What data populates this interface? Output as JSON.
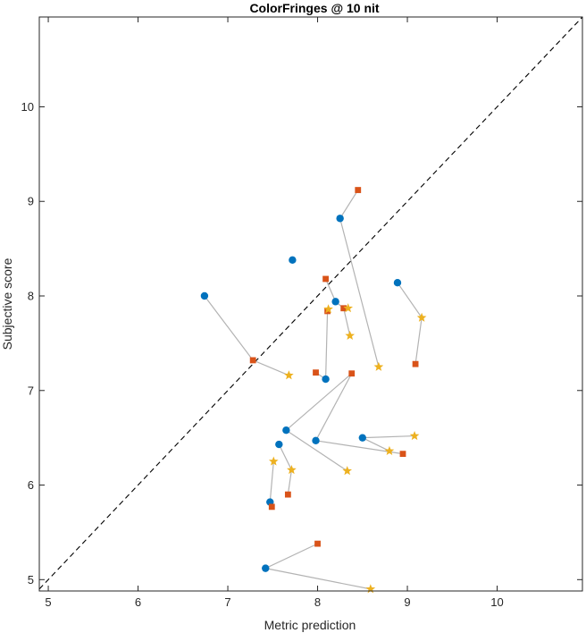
{
  "chart_data": {
    "type": "scatter",
    "title": "ColorFringes @ 10 nit",
    "xlabel": "Metric prediction",
    "ylabel": "Subjective score",
    "xlim": [
      4.9,
      10.95
    ],
    "ylim": [
      4.88,
      10.95
    ],
    "xticks": [
      5,
      6,
      7,
      8,
      9,
      10
    ],
    "yticks": [
      5,
      6,
      7,
      8,
      9,
      10
    ],
    "grid": false,
    "reference_line": "y = x (dashed)",
    "colors": {
      "circle": "#0072BD",
      "square": "#D95319",
      "star": "#EDB120",
      "connector": "#b3b3b3",
      "reference": "#000000"
    },
    "series": [
      {
        "marker": "circle",
        "points": [
          [
            6.74,
            8.0
          ],
          [
            7.72,
            8.38
          ],
          [
            8.25,
            8.82
          ],
          [
            8.2,
            7.94
          ],
          [
            8.89,
            8.14
          ],
          [
            8.09,
            7.12
          ],
          [
            7.65,
            6.58
          ],
          [
            7.98,
            6.47
          ],
          [
            8.5,
            6.5
          ],
          [
            7.57,
            6.43
          ],
          [
            7.47,
            5.82
          ],
          [
            7.42,
            5.12
          ]
        ]
      },
      {
        "marker": "square",
        "points": [
          [
            7.28,
            7.32
          ],
          [
            8.09,
            8.18
          ],
          [
            8.45,
            9.12
          ],
          [
            8.29,
            7.87
          ],
          [
            8.11,
            7.84
          ],
          [
            9.09,
            7.28
          ],
          [
            7.98,
            7.19
          ],
          [
            8.38,
            7.18
          ],
          [
            8.95,
            6.33
          ],
          [
            7.67,
            5.9
          ],
          [
            7.49,
            5.77
          ],
          [
            8.0,
            5.38
          ]
        ]
      },
      {
        "marker": "star",
        "points": [
          [
            7.68,
            7.16
          ],
          [
            8.34,
            7.87
          ],
          [
            8.12,
            7.86
          ],
          [
            8.68,
            7.25
          ],
          [
            9.16,
            7.77
          ],
          [
            8.36,
            7.58
          ],
          [
            8.33,
            6.15
          ],
          [
            9.08,
            6.52
          ],
          [
            8.8,
            6.36
          ],
          [
            7.71,
            6.16
          ],
          [
            7.51,
            6.25
          ],
          [
            8.59,
            4.9
          ]
        ]
      }
    ],
    "connections": [
      [
        [
          6.74,
          8.0
        ],
        [
          7.28,
          7.32
        ],
        [
          7.68,
          7.16
        ]
      ],
      [
        [
          7.72,
          8.38
        ]
      ],
      [
        [
          8.25,
          8.82
        ],
        [
          8.45,
          9.12
        ]
      ],
      [
        [
          8.25,
          8.82
        ],
        [
          8.68,
          7.25
        ]
      ],
      [
        [
          8.2,
          7.94
        ],
        [
          8.09,
          8.18
        ]
      ],
      [
        [
          8.2,
          7.94
        ],
        [
          8.29,
          7.87
        ],
        [
          8.36,
          7.58
        ]
      ],
      [
        [
          8.11,
          7.84
        ],
        [
          8.09,
          7.12
        ],
        [
          7.98,
          7.19
        ]
      ],
      [
        [
          8.89,
          8.14
        ],
        [
          9.16,
          7.77
        ],
        [
          9.09,
          7.28
        ]
      ],
      [
        [
          7.65,
          6.58
        ],
        [
          8.38,
          7.18
        ]
      ],
      [
        [
          7.65,
          6.58
        ],
        [
          8.33,
          6.15
        ]
      ],
      [
        [
          7.98,
          6.47
        ],
        [
          8.38,
          7.18
        ]
      ],
      [
        [
          7.98,
          6.47
        ],
        [
          8.95,
          6.33
        ]
      ],
      [
        [
          8.5,
          6.5
        ],
        [
          9.08,
          6.52
        ]
      ],
      [
        [
          8.5,
          6.5
        ],
        [
          8.8,
          6.36
        ]
      ],
      [
        [
          7.57,
          6.43
        ],
        [
          7.71,
          6.16
        ],
        [
          7.67,
          5.9
        ]
      ],
      [
        [
          7.47,
          5.82
        ],
        [
          7.51,
          6.25
        ]
      ],
      [
        [
          7.47,
          5.82
        ],
        [
          7.49,
          5.77
        ]
      ],
      [
        [
          7.42,
          5.12
        ],
        [
          8.0,
          5.38
        ]
      ],
      [
        [
          7.42,
          5.12
        ],
        [
          8.59,
          4.9
        ]
      ]
    ]
  }
}
